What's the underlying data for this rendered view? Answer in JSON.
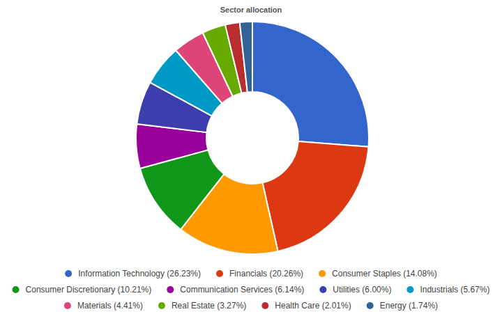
{
  "chart_data": {
    "type": "donut",
    "title": "Sector allocation",
    "categories": [
      "Information Technology (26.23%)",
      "Financials (20.26%)",
      "Consumer Staples (14.08%)",
      "Consumer Discretionary (10.21%)",
      "Communication Services (6.14%)",
      "Utilities (6.00%)",
      "Industrials (5.67%)",
      "Materials (4.41%)",
      "Real Estate (3.27%)",
      "Health Care (2.01%)",
      "Energy (1.74%)"
    ],
    "values": [
      26.23,
      20.26,
      14.08,
      10.21,
      6.14,
      6.0,
      5.67,
      4.41,
      3.27,
      2.01,
      1.74
    ],
    "colors": [
      "#3366cc",
      "#dc3912",
      "#ff9900",
      "#109618",
      "#990099",
      "#3b3eac",
      "#0099c6",
      "#dd4477",
      "#66aa00",
      "#b82e2e",
      "#316395"
    ],
    "legend": "bottom"
  }
}
